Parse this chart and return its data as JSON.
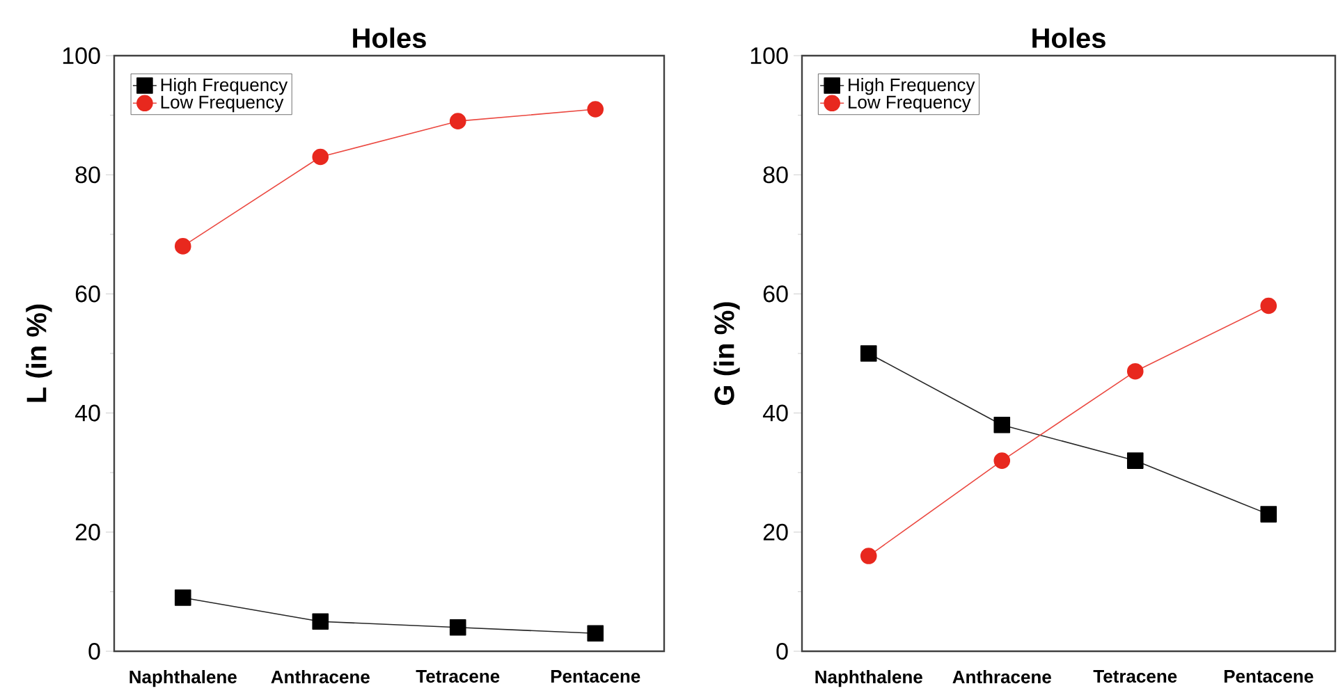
{
  "chart_data": [
    {
      "type": "line",
      "title": "Holes",
      "ylabel": "L (in %)",
      "categories": [
        "Naphthalene",
        "Anthracene",
        "Tetracene",
        "Pentacene"
      ],
      "ylim": [
        0,
        100
      ],
      "yticks": [
        0,
        20,
        40,
        60,
        80,
        100
      ],
      "legend": "top left",
      "grid": false,
      "series": [
        {
          "name": "High Frequency",
          "color": "#000000",
          "marker": "square",
          "values": [
            9,
            5,
            4,
            3
          ]
        },
        {
          "name": "Low Frequency",
          "color": "#e8281e",
          "marker": "circle",
          "values": [
            68,
            83,
            89,
            91
          ]
        }
      ]
    },
    {
      "type": "line",
      "title": "Holes",
      "ylabel": "G (in %)",
      "categories": [
        "Naphthalene",
        "Anthracene",
        "Tetracene",
        "Pentacene"
      ],
      "ylim": [
        0,
        100
      ],
      "yticks": [
        0,
        20,
        40,
        60,
        80,
        100
      ],
      "legend": "top left",
      "grid": false,
      "series": [
        {
          "name": "High Frequency",
          "color": "#000000",
          "marker": "square",
          "values": [
            50,
            38,
            32,
            23
          ]
        },
        {
          "name": "Low Frequency",
          "color": "#e8281e",
          "marker": "circle",
          "values": [
            16,
            32,
            47,
            58
          ]
        }
      ]
    }
  ]
}
